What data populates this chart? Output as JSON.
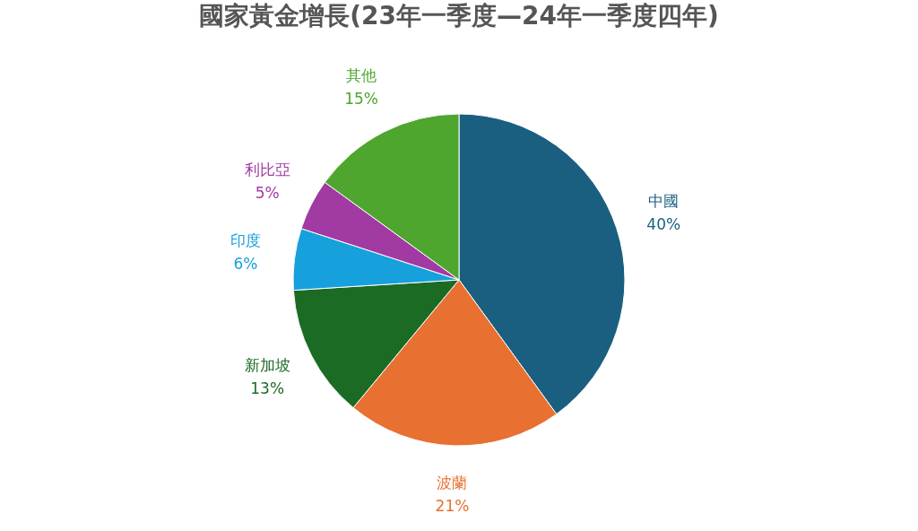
{
  "chart_data": {
    "type": "pie",
    "title": "國家黃金增長(23年一季度—24年一季度四年)",
    "categories": [
      "中國",
      "波蘭",
      "新加坡",
      "印度",
      "利比亞",
      "其他"
    ],
    "values": [
      40,
      21,
      13,
      6,
      5,
      15
    ],
    "colors": [
      "#1a5f80",
      "#e87030",
      "#1b6b25",
      "#16a0dc",
      "#a23aa3",
      "#4ea62e"
    ],
    "value_labels": [
      "40%",
      "21%",
      "13%",
      "6%",
      "5%",
      "15%"
    ],
    "legend": false
  }
}
